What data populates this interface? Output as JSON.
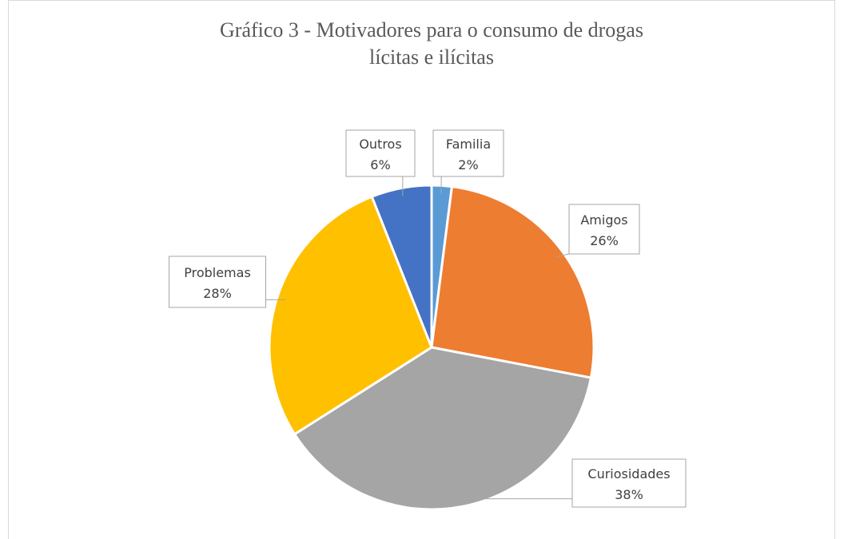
{
  "chart_data": {
    "type": "pie",
    "title": [
      "Gráfico 3 - Motivadores para o consumo de drogas",
      "lícitas e ilícitas"
    ],
    "categories": [
      "Familia",
      "Amigos",
      "Curiosidades",
      "Problemas",
      "Outros"
    ],
    "values": [
      2,
      26,
      38,
      28,
      6
    ],
    "value_labels": [
      "2%",
      "26%",
      "38%",
      "28%",
      "6%"
    ],
    "colors": [
      "#5b9bd5",
      "#ed7d31",
      "#a5a5a5",
      "#ffc000",
      "#4472c4"
    ]
  }
}
